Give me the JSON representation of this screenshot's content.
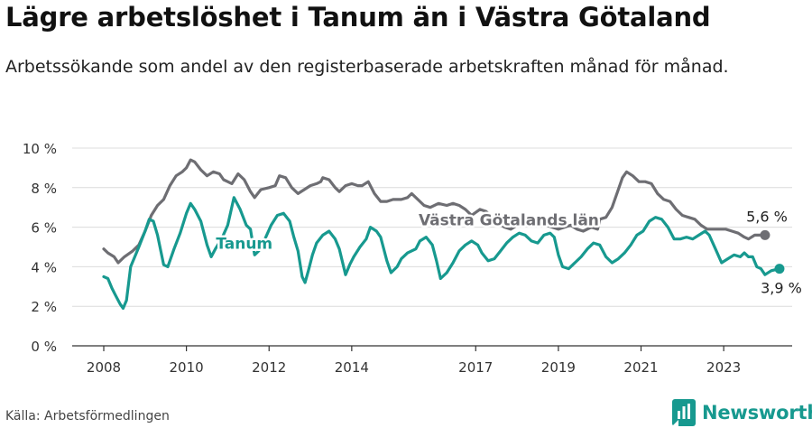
{
  "title": "Lägre arbetslöshet i Tanum än i Västra Götaland",
  "subtitle": "Arbetssökande som andel av den registerbaserade arbetskraften månad för månad.",
  "source": "Källa: Arbetsförmedlingen",
  "brand": {
    "name": "Newsworthy",
    "icon": "newsworthy-logo-icon",
    "color": "#17998f"
  },
  "chart_data": {
    "type": "line",
    "title": "",
    "xlabel": "",
    "ylabel": "",
    "xlim": [
      2008,
      2024.7
    ],
    "ylim": [
      0,
      10
    ],
    "yticks": [
      0,
      2,
      4,
      6,
      8,
      10
    ],
    "ytick_labels": [
      "0 %",
      "2 %",
      "4 %",
      "6 %",
      "8 %",
      "10 %"
    ],
    "xticks": [
      2008,
      2010,
      2012,
      2014,
      2017,
      2019,
      2021,
      2023
    ],
    "xtick_labels": [
      "2008",
      "2010",
      "2012",
      "2014",
      "2017",
      "2019",
      "2021",
      "2023"
    ],
    "grid": true,
    "series": [
      {
        "name": "Västra Götalands län",
        "color": "#6e6e73",
        "label_at": [
          2017.8,
          6.1
        ],
        "end_label": "5,6 %",
        "points": [
          [
            2008.0,
            4.9
          ],
          [
            2008.1,
            4.7
          ],
          [
            2008.25,
            4.5
          ],
          [
            2008.35,
            4.2
          ],
          [
            2008.5,
            4.5
          ],
          [
            2008.7,
            4.8
          ],
          [
            2008.85,
            5.1
          ],
          [
            2009.0,
            5.8
          ],
          [
            2009.15,
            6.6
          ],
          [
            2009.3,
            7.1
          ],
          [
            2009.45,
            7.4
          ],
          [
            2009.6,
            8.1
          ],
          [
            2009.75,
            8.6
          ],
          [
            2009.9,
            8.8
          ],
          [
            2010.0,
            9.0
          ],
          [
            2010.1,
            9.4
          ],
          [
            2010.2,
            9.3
          ],
          [
            2010.35,
            8.9
          ],
          [
            2010.5,
            8.6
          ],
          [
            2010.65,
            8.8
          ],
          [
            2010.8,
            8.7
          ],
          [
            2010.9,
            8.4
          ],
          [
            2011.0,
            8.3
          ],
          [
            2011.1,
            8.2
          ],
          [
            2011.25,
            8.7
          ],
          [
            2011.4,
            8.4
          ],
          [
            2011.55,
            7.8
          ],
          [
            2011.65,
            7.5
          ],
          [
            2011.8,
            7.9
          ],
          [
            2012.0,
            8.0
          ],
          [
            2012.15,
            8.1
          ],
          [
            2012.25,
            8.6
          ],
          [
            2012.4,
            8.5
          ],
          [
            2012.55,
            8.0
          ],
          [
            2012.7,
            7.7
          ],
          [
            2012.85,
            7.9
          ],
          [
            2013.0,
            8.1
          ],
          [
            2013.15,
            8.2
          ],
          [
            2013.25,
            8.3
          ],
          [
            2013.3,
            8.5
          ],
          [
            2013.45,
            8.4
          ],
          [
            2013.6,
            8.0
          ],
          [
            2013.7,
            7.8
          ],
          [
            2013.85,
            8.1
          ],
          [
            2014.0,
            8.2
          ],
          [
            2014.15,
            8.1
          ],
          [
            2014.25,
            8.1
          ],
          [
            2014.4,
            8.3
          ],
          [
            2014.55,
            7.7
          ],
          [
            2014.7,
            7.3
          ],
          [
            2014.85,
            7.3
          ],
          [
            2015.0,
            7.4
          ],
          [
            2015.2,
            7.4
          ],
          [
            2015.35,
            7.5
          ],
          [
            2015.45,
            7.7
          ],
          [
            2015.6,
            7.4
          ],
          [
            2015.75,
            7.1
          ],
          [
            2015.9,
            7.0
          ],
          [
            2016.1,
            7.2
          ],
          [
            2016.3,
            7.1
          ],
          [
            2016.45,
            7.2
          ],
          [
            2016.6,
            7.1
          ],
          [
            2016.75,
            6.9
          ],
          [
            2016.9,
            6.6
          ],
          [
            2017.1,
            6.9
          ],
          [
            2017.25,
            6.8
          ],
          [
            2017.4,
            6.5
          ],
          [
            2017.55,
            6.2
          ],
          [
            2017.7,
            6.0
          ],
          [
            2017.85,
            5.9
          ],
          [
            2018.0,
            6.1
          ],
          [
            2018.15,
            6.3
          ],
          [
            2018.3,
            6.1
          ],
          [
            2018.5,
            6.2
          ],
          [
            2018.7,
            6.1
          ],
          [
            2018.85,
            6.0
          ],
          [
            2019.0,
            5.9
          ],
          [
            2019.15,
            6.0
          ],
          [
            2019.3,
            6.1
          ],
          [
            2019.45,
            5.9
          ],
          [
            2019.6,
            5.8
          ],
          [
            2019.8,
            6.0
          ],
          [
            2019.95,
            5.9
          ],
          [
            2020.0,
            6.4
          ],
          [
            2020.15,
            6.5
          ],
          [
            2020.3,
            7.0
          ],
          [
            2020.45,
            7.9
          ],
          [
            2020.55,
            8.5
          ],
          [
            2020.65,
            8.8
          ],
          [
            2020.8,
            8.6
          ],
          [
            2020.95,
            8.3
          ],
          [
            2021.1,
            8.3
          ],
          [
            2021.25,
            8.2
          ],
          [
            2021.4,
            7.7
          ],
          [
            2021.55,
            7.4
          ],
          [
            2021.7,
            7.3
          ],
          [
            2021.85,
            6.9
          ],
          [
            2022.0,
            6.6
          ],
          [
            2022.15,
            6.5
          ],
          [
            2022.3,
            6.4
          ],
          [
            2022.45,
            6.1
          ],
          [
            2022.6,
            5.9
          ],
          [
            2022.75,
            5.9
          ],
          [
            2022.9,
            5.9
          ],
          [
            2023.05,
            5.9
          ],
          [
            2023.2,
            5.8
          ],
          [
            2023.35,
            5.7
          ],
          [
            2023.5,
            5.5
          ],
          [
            2023.6,
            5.4
          ],
          [
            2023.75,
            5.6
          ],
          [
            2023.9,
            5.6
          ],
          [
            2024.0,
            5.6
          ]
        ]
      },
      {
        "name": "Tanum",
        "color": "#17998f",
        "label_at": [
          2011.4,
          4.9
        ],
        "end_label": "3,9 %",
        "points": [
          [
            2008.0,
            3.5
          ],
          [
            2008.1,
            3.4
          ],
          [
            2008.2,
            2.9
          ],
          [
            2008.3,
            2.5
          ],
          [
            2008.4,
            2.1
          ],
          [
            2008.47,
            1.9
          ],
          [
            2008.55,
            2.3
          ],
          [
            2008.65,
            4.0
          ],
          [
            2008.75,
            4.5
          ],
          [
            2008.85,
            5.0
          ],
          [
            2009.0,
            5.8
          ],
          [
            2009.1,
            6.4
          ],
          [
            2009.2,
            6.3
          ],
          [
            2009.3,
            5.6
          ],
          [
            2009.45,
            4.1
          ],
          [
            2009.55,
            4.0
          ],
          [
            2009.7,
            4.9
          ],
          [
            2009.85,
            5.7
          ],
          [
            2010.0,
            6.7
          ],
          [
            2010.1,
            7.2
          ],
          [
            2010.2,
            6.9
          ],
          [
            2010.35,
            6.3
          ],
          [
            2010.5,
            5.1
          ],
          [
            2010.6,
            4.5
          ],
          [
            2010.7,
            4.9
          ],
          [
            2010.85,
            5.4
          ],
          [
            2011.0,
            6.1
          ],
          [
            2011.15,
            7.5
          ],
          [
            2011.3,
            6.9
          ],
          [
            2011.45,
            6.1
          ],
          [
            2011.55,
            5.9
          ],
          [
            2011.65,
            4.6
          ],
          [
            2011.75,
            4.8
          ],
          [
            2011.9,
            5.4
          ],
          [
            2012.05,
            6.1
          ],
          [
            2012.2,
            6.6
          ],
          [
            2012.35,
            6.7
          ],
          [
            2012.5,
            6.3
          ],
          [
            2012.6,
            5.5
          ],
          [
            2012.7,
            4.8
          ],
          [
            2012.8,
            3.5
          ],
          [
            2012.87,
            3.2
          ],
          [
            2012.95,
            3.8
          ],
          [
            2013.05,
            4.6
          ],
          [
            2013.15,
            5.2
          ],
          [
            2013.3,
            5.6
          ],
          [
            2013.45,
            5.8
          ],
          [
            2013.6,
            5.4
          ],
          [
            2013.7,
            4.9
          ],
          [
            2013.85,
            3.6
          ],
          [
            2013.95,
            4.1
          ],
          [
            2014.05,
            4.5
          ],
          [
            2014.2,
            5.0
          ],
          [
            2014.35,
            5.4
          ],
          [
            2014.45,
            6.0
          ],
          [
            2014.6,
            5.8
          ],
          [
            2014.7,
            5.5
          ],
          [
            2014.85,
            4.3
          ],
          [
            2014.95,
            3.7
          ],
          [
            2015.1,
            4.0
          ],
          [
            2015.2,
            4.4
          ],
          [
            2015.35,
            4.7
          ],
          [
            2015.55,
            4.9
          ],
          [
            2015.65,
            5.3
          ],
          [
            2015.8,
            5.5
          ],
          [
            2015.95,
            5.1
          ],
          [
            2016.05,
            4.3
          ],
          [
            2016.15,
            3.4
          ],
          [
            2016.3,
            3.7
          ],
          [
            2016.45,
            4.2
          ],
          [
            2016.6,
            4.8
          ],
          [
            2016.75,
            5.1
          ],
          [
            2016.9,
            5.3
          ],
          [
            2017.05,
            5.1
          ],
          [
            2017.15,
            4.7
          ],
          [
            2017.3,
            4.3
          ],
          [
            2017.45,
            4.4
          ],
          [
            2017.6,
            4.8
          ],
          [
            2017.75,
            5.2
          ],
          [
            2017.9,
            5.5
          ],
          [
            2018.05,
            5.7
          ],
          [
            2018.2,
            5.6
          ],
          [
            2018.35,
            5.3
          ],
          [
            2018.5,
            5.2
          ],
          [
            2018.65,
            5.6
          ],
          [
            2018.8,
            5.7
          ],
          [
            2018.9,
            5.5
          ],
          [
            2019.0,
            4.6
          ],
          [
            2019.1,
            4.0
          ],
          [
            2019.25,
            3.9
          ],
          [
            2019.4,
            4.2
          ],
          [
            2019.55,
            4.5
          ],
          [
            2019.7,
            4.9
          ],
          [
            2019.85,
            5.2
          ],
          [
            2020.0,
            5.1
          ],
          [
            2020.15,
            4.5
          ],
          [
            2020.3,
            4.2
          ],
          [
            2020.45,
            4.4
          ],
          [
            2020.6,
            4.7
          ],
          [
            2020.75,
            5.1
          ],
          [
            2020.9,
            5.6
          ],
          [
            2021.05,
            5.8
          ],
          [
            2021.2,
            6.3
          ],
          [
            2021.35,
            6.5
          ],
          [
            2021.5,
            6.4
          ],
          [
            2021.65,
            6.0
          ],
          [
            2021.8,
            5.4
          ],
          [
            2021.95,
            5.4
          ],
          [
            2022.1,
            5.5
          ],
          [
            2022.25,
            5.4
          ],
          [
            2022.4,
            5.6
          ],
          [
            2022.55,
            5.8
          ],
          [
            2022.65,
            5.6
          ],
          [
            2022.8,
            4.9
          ],
          [
            2022.95,
            4.2
          ],
          [
            2023.1,
            4.4
          ],
          [
            2023.25,
            4.6
          ],
          [
            2023.4,
            4.5
          ],
          [
            2023.5,
            4.7
          ],
          [
            2023.6,
            4.5
          ],
          [
            2023.7,
            4.5
          ],
          [
            2023.8,
            4.0
          ],
          [
            2023.9,
            3.9
          ],
          [
            2024.0,
            3.6
          ],
          [
            2024.15,
            3.8
          ],
          [
            2024.35,
            3.9
          ]
        ]
      }
    ]
  }
}
